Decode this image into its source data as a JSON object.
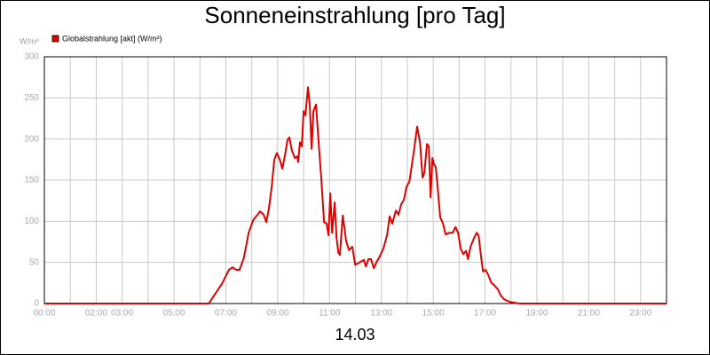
{
  "chart_data": {
    "type": "line",
    "title": "Sonneneinstrahlung [pro Tag]",
    "y_unit_label": "W/m²",
    "x_caption": "14.03",
    "xlim": [
      0,
      24
    ],
    "ylim": [
      0,
      300
    ],
    "yticks": [
      0,
      50,
      100,
      150,
      200,
      250,
      300
    ],
    "xticks": [
      {
        "value": 0,
        "label": "00:00"
      },
      {
        "value": 1
      },
      {
        "value": 2,
        "label": "02:00"
      },
      {
        "value": 3,
        "label": "03:00"
      },
      {
        "value": 4
      },
      {
        "value": 5,
        "label": "05:00"
      },
      {
        "value": 6
      },
      {
        "value": 7,
        "label": "07:00"
      },
      {
        "value": 8
      },
      {
        "value": 9,
        "label": "09:00"
      },
      {
        "value": 10
      },
      {
        "value": 11,
        "label": "11:00"
      },
      {
        "value": 12
      },
      {
        "value": 13,
        "label": "13:00"
      },
      {
        "value": 14
      },
      {
        "value": 15,
        "label": "15:00"
      },
      {
        "value": 16
      },
      {
        "value": 17,
        "label": "17:00"
      },
      {
        "value": 18
      },
      {
        "value": 19,
        "label": "19:00"
      },
      {
        "value": 20
      },
      {
        "value": 21,
        "label": "21:00"
      },
      {
        "value": 22
      },
      {
        "value": 23,
        "label": "23:00"
      },
      {
        "value": 24
      }
    ],
    "grid": true,
    "legend": "top-left",
    "x": [
      0,
      6.34,
      6.68,
      6.85,
      7.12,
      7.26,
      7.4,
      7.53,
      7.7,
      7.88,
      8.05,
      8.22,
      8.32,
      8.46,
      8.56,
      8.66,
      8.77,
      8.87,
      8.97,
      9.08,
      9.18,
      9.28,
      9.38,
      9.45,
      9.55,
      9.66,
      9.76,
      9.79,
      9.86,
      9.93,
      10.0,
      10.07,
      10.17,
      10.24,
      10.31,
      10.38,
      10.48,
      10.58,
      10.68,
      10.79,
      10.89,
      10.96,
      11.03,
      11.1,
      11.2,
      11.27,
      11.34,
      11.4,
      11.51,
      11.58,
      11.64,
      11.75,
      11.88,
      11.99,
      12.16,
      12.33,
      12.4,
      12.5,
      12.6,
      12.71,
      12.81,
      12.95,
      13.08,
      13.22,
      13.32,
      13.42,
      13.56,
      13.66,
      13.77,
      13.87,
      13.97,
      14.08,
      14.18,
      14.28,
      14.38,
      14.49,
      14.59,
      14.66,
      14.76,
      14.83,
      14.9,
      14.97,
      15.03,
      15.1,
      15.17,
      15.27,
      15.38,
      15.48,
      15.62,
      15.75,
      15.86,
      15.96,
      16.06,
      16.16,
      16.27,
      16.34,
      16.44,
      16.58,
      16.68,
      16.75,
      16.85,
      16.92,
      17.02,
      17.12,
      17.23,
      17.36,
      17.5,
      17.6,
      17.74,
      17.95,
      18.32,
      24
    ],
    "series": [
      {
        "name": "Globalstrahlung [akt] (W/m²)",
        "color": "#e00000",
        "values": [
          0,
          0,
          16,
          24,
          41,
          44,
          41,
          41,
          56,
          86,
          101,
          108,
          112,
          108,
          99,
          115,
          142,
          175,
          183,
          175,
          164,
          180,
          199,
          202,
          186,
          177,
          179,
          172,
          196,
          191,
          234,
          229,
          263,
          240,
          188,
          234,
          242,
          196,
          153,
          99,
          97,
          83,
          134,
          86,
          123,
          80,
          62,
          59,
          107,
          91,
          76,
          65,
          69,
          47,
          50,
          53,
          45,
          54,
          54,
          43,
          50,
          58,
          67,
          83,
          106,
          97,
          113,
          108,
          121,
          126,
          142,
          148,
          169,
          191,
          215,
          196,
          153,
          159,
          194,
          191,
          129,
          177,
          169,
          166,
          142,
          105,
          97,
          84,
          86,
          86,
          93,
          86,
          67,
          60,
          64,
          54,
          69,
          80,
          86,
          83,
          56,
          39,
          41,
          35,
          26,
          22,
          17,
          10,
          5,
          2,
          0,
          0
        ]
      }
    ]
  }
}
